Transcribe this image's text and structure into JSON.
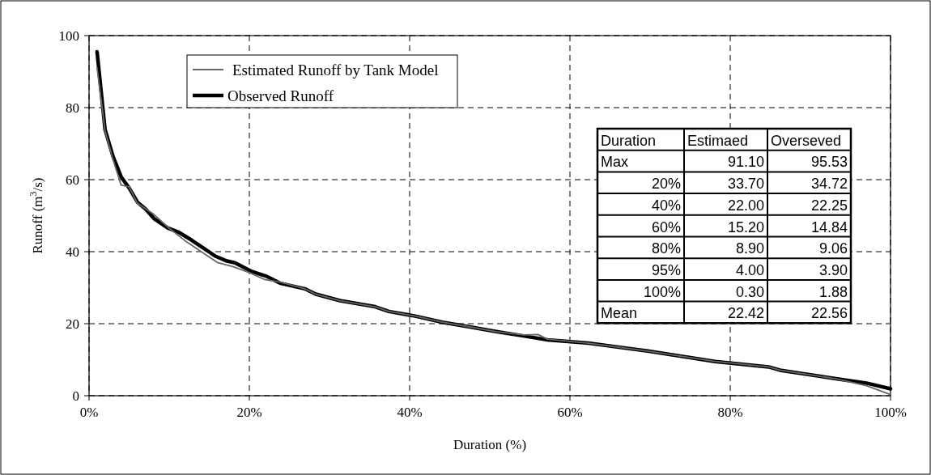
{
  "chart_data": {
    "type": "line",
    "xlabel": "Duration (%)",
    "ylabel": "Runoff (m$^{3}$/s)",
    "xlim": [
      0,
      100
    ],
    "xticks": [
      {
        "value": 0,
        "label": "0%"
      },
      {
        "value": 20,
        "label": "20%"
      },
      {
        "value": 40,
        "label": "40%"
      },
      {
        "value": 60,
        "label": "60%"
      },
      {
        "value": 80,
        "label": "80%"
      },
      {
        "value": 100,
        "label": "100%"
      }
    ],
    "ylim": [
      0,
      100
    ],
    "yticks": [
      0,
      20,
      40,
      60,
      80,
      100
    ],
    "grid": true,
    "legend": "top left",
    "line_style": "solid",
    "marker": "none",
    "series": [
      {
        "name": "Estimated Runoff by Tank Model",
        "color": "#666666",
        "x": [
          1,
          2,
          3,
          3.5,
          4,
          5,
          6,
          8,
          9,
          10,
          12,
          14,
          16,
          18,
          20,
          22,
          24,
          26.9,
          28.3,
          31.3,
          35.7,
          37.4,
          40.7,
          44.1,
          47.5,
          50.8,
          54.2,
          56,
          57.2,
          62.3,
          69.7,
          78.1,
          84.8,
          86.2,
          93.2,
          97,
          100
        ],
        "values": [
          91.1,
          73.5,
          65.5,
          62,
          58.5,
          58,
          53.5,
          50.5,
          48.5,
          46.5,
          43,
          40,
          37,
          35.8,
          34.2,
          32.2,
          31.5,
          29.7,
          28.2,
          26.4,
          24.7,
          23.4,
          22.1,
          20.4,
          19.1,
          17.8,
          16.9,
          17,
          15.7,
          14.6,
          12.4,
          9.5,
          8,
          7.1,
          4.7,
          2.8,
          0.3
        ]
      },
      {
        "name": "Observed Runoff",
        "color": "#000000",
        "x": [
          1,
          2,
          3,
          4,
          5.05,
          6.06,
          7.07,
          8.1,
          9.8,
          11.1,
          12.8,
          15.8,
          17.2,
          18.2,
          20.2,
          22.2,
          23.9,
          26.9,
          28.3,
          31.3,
          35.7,
          37.4,
          40.7,
          44.1,
          47.5,
          50.8,
          54.2,
          57.2,
          62.3,
          69.7,
          78.1,
          84.8,
          86.2,
          93.2,
          97,
          100
        ],
        "values": [
          95.5,
          73.9,
          66.4,
          60.8,
          57.5,
          53.7,
          51.8,
          49.2,
          46.6,
          45.5,
          43.2,
          38.7,
          37.4,
          36.9,
          34.6,
          33.1,
          31.2,
          29.7,
          28.2,
          26.4,
          24.7,
          23.4,
          22.1,
          20.4,
          19.1,
          17.8,
          16.6,
          15.5,
          14.6,
          12.4,
          9.5,
          8,
          7.1,
          4.7,
          3.5,
          1.9
        ]
      }
    ],
    "annotations": [
      "Duration",
      "Estimaed",
      "Overseved",
      "Max",
      "91.10",
      "95.53",
      "20%",
      "33.70",
      "34.72",
      "40%",
      "22.00",
      "22.25",
      "60%",
      "15.20",
      "14.84",
      "80%",
      "8.90",
      "9.06",
      "95%",
      "4.00",
      "3.90",
      "100%",
      "0.30",
      "1.88",
      "Mean",
      "22.42",
      "22.56"
    ]
  }
}
